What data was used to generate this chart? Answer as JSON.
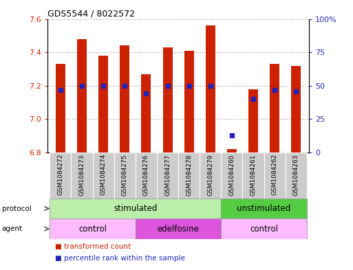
{
  "title": "GDS5544 / 8022572",
  "samples": [
    "GSM1084272",
    "GSM1084273",
    "GSM1084274",
    "GSM1084275",
    "GSM1084276",
    "GSM1084277",
    "GSM1084278",
    "GSM1084279",
    "GSM1084260",
    "GSM1084261",
    "GSM1084262",
    "GSM1084263"
  ],
  "red_values": [
    7.33,
    7.48,
    7.38,
    7.44,
    7.27,
    7.43,
    7.41,
    7.56,
    6.82,
    7.18,
    7.33,
    7.32
  ],
  "blue_values_pct": [
    47,
    50,
    50,
    50,
    44,
    50,
    50,
    50,
    13,
    40,
    47,
    46
  ],
  "ylim": [
    6.8,
    7.6
  ],
  "y_ticks": [
    6.8,
    7.0,
    7.2,
    7.4,
    7.6
  ],
  "right_ylim": [
    0,
    100
  ],
  "right_yticks": [
    0,
    25,
    50,
    75,
    100
  ],
  "right_yticklabels": [
    "0",
    "25",
    "50",
    "75",
    "100%"
  ],
  "bar_color": "#cc2200",
  "dot_color": "#2222bb",
  "bar_width": 0.45,
  "protocol_stim_color": "#bbeeaa",
  "protocol_unstim_color": "#55cc44",
  "agent_ctrl_color": "#ffbbff",
  "agent_edelf_color": "#dd55dd",
  "sample_bg_color": "#cccccc",
  "grid_color": "#999999",
  "tick_color_left": "#cc2200",
  "tick_color_right": "#2222bb",
  "legend_red_label": "transformed count",
  "legend_blue_label": "percentile rank within the sample"
}
